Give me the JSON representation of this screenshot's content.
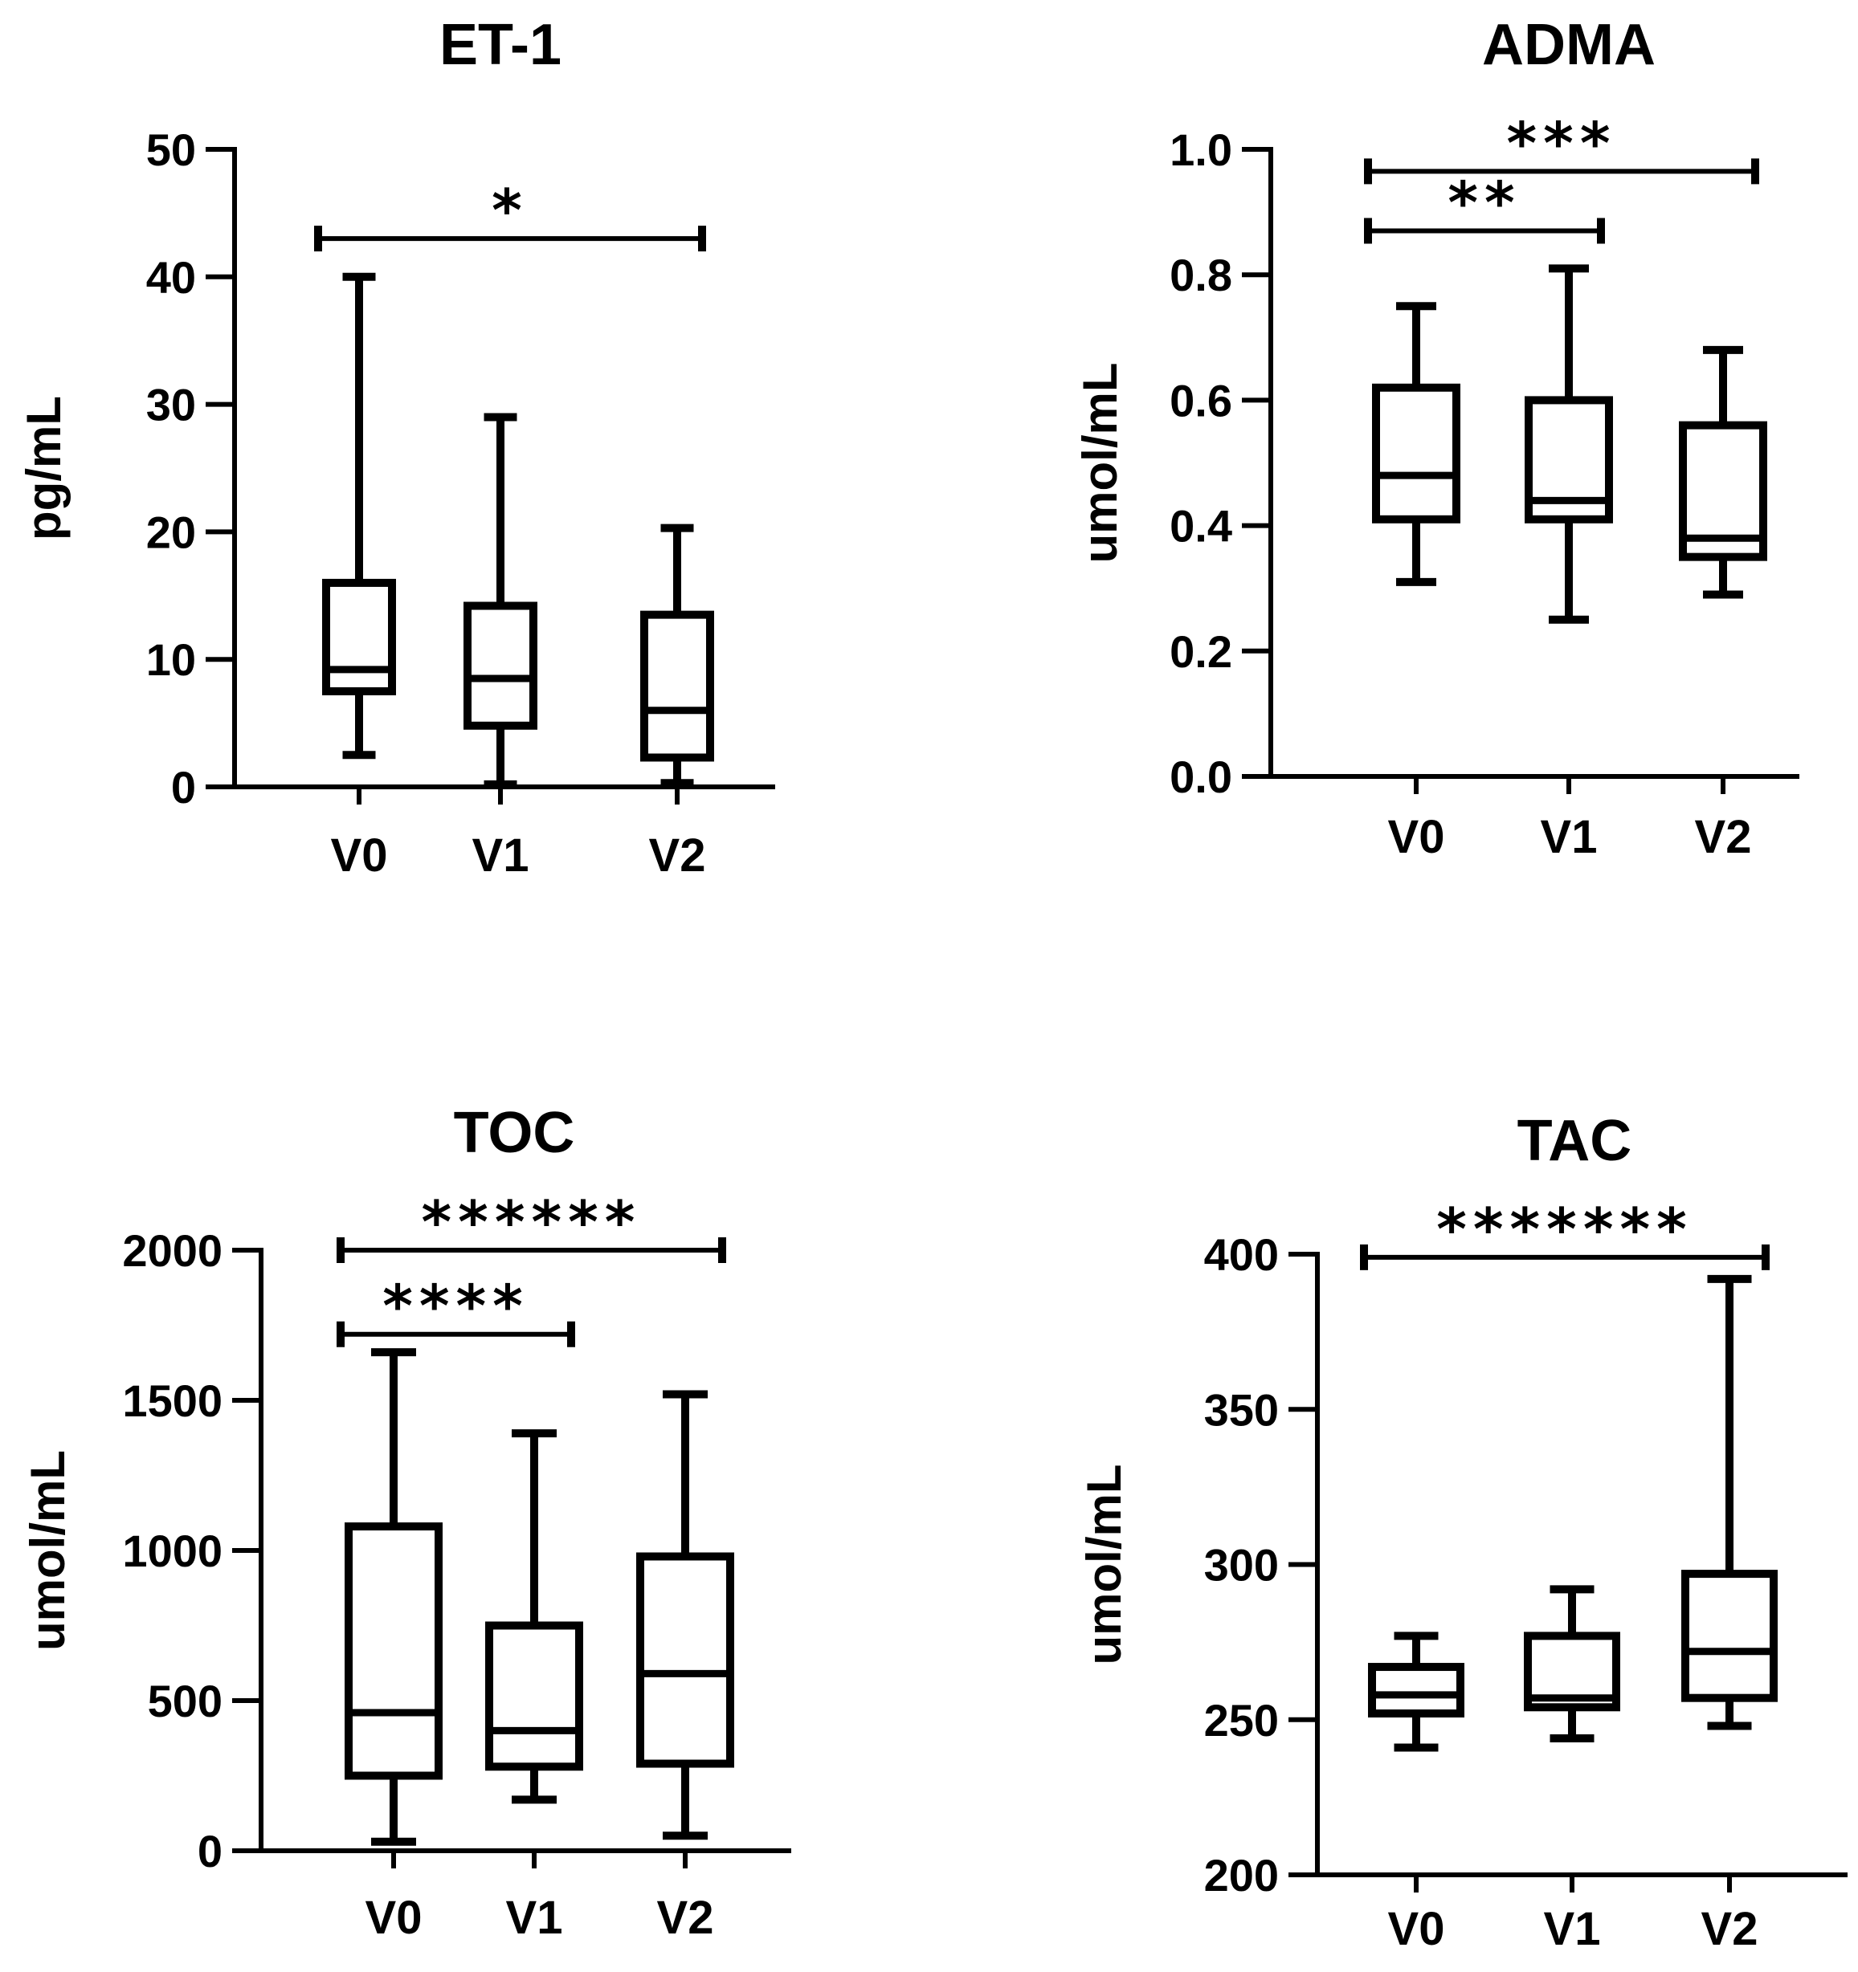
{
  "chart_data": [
    {
      "type": "boxplot",
      "title": "ET-1",
      "ylabel": "pg/mL",
      "ylim": [
        0,
        50
      ],
      "yticks": [
        0,
        10,
        20,
        30,
        40,
        50
      ],
      "categories": [
        "V0",
        "V1",
        "V2"
      ],
      "boxes": [
        {
          "min": 2.5,
          "q1": 7.5,
          "median": 9.2,
          "q3": 16,
          "max": 40,
          "color": "#9a9a9a"
        },
        {
          "min": 0.2,
          "q1": 4.8,
          "median": 8.5,
          "q3": 14.2,
          "max": 29,
          "color": "#858585"
        },
        {
          "min": 0.3,
          "q1": 2.3,
          "median": 6,
          "q3": 13.5,
          "max": 20.3,
          "color": "#9d9d9d"
        }
      ],
      "significance": [
        {
          "from": 0,
          "to": 2,
          "y": 43,
          "label": "*"
        }
      ]
    },
    {
      "type": "boxplot",
      "title": "ADMA",
      "ylabel": "umol/mL",
      "ylim": [
        0.0,
        1.0
      ],
      "yticks": [
        "0.0",
        "0.2",
        "0.4",
        "0.6",
        "0.8",
        "1.0"
      ],
      "categories": [
        "V0",
        "V1",
        "V2"
      ],
      "boxes": [
        {
          "min": 0.31,
          "q1": 0.41,
          "median": 0.48,
          "q3": 0.62,
          "max": 0.75,
          "color": "#8a8a8a"
        },
        {
          "min": 0.25,
          "q1": 0.41,
          "median": 0.44,
          "q3": 0.6,
          "max": 0.81,
          "color": "#858585"
        },
        {
          "min": 0.29,
          "q1": 0.35,
          "median": 0.38,
          "q3": 0.56,
          "max": 0.68,
          "color": "#636363"
        }
      ],
      "significance": [
        {
          "from": 0,
          "to": 2,
          "y": 0.965,
          "label": "***"
        },
        {
          "from": 0,
          "to": 1,
          "y": 0.87,
          "label": "**"
        }
      ]
    },
    {
      "type": "boxplot",
      "title": "TOC",
      "ylabel": "umol/mL",
      "ylim": [
        0,
        2000
      ],
      "yticks": [
        0,
        500,
        1000,
        1500,
        2000
      ],
      "categories": [
        "V0",
        "V1",
        "V2"
      ],
      "boxes": [
        {
          "min": 30,
          "q1": 250,
          "median": 460,
          "q3": 1080,
          "max": 1660,
          "color": "#8a8a8a"
        },
        {
          "min": 170,
          "q1": 280,
          "median": 400,
          "q3": 750,
          "max": 1390,
          "color": "#858585"
        },
        {
          "min": 50,
          "q1": 290,
          "median": 590,
          "q3": 980,
          "max": 1520,
          "color": "#606060"
        }
      ],
      "significance": [
        {
          "from": 0,
          "to": 2,
          "y": 2000,
          "label": "******"
        },
        {
          "from": 0,
          "to": 1,
          "y": 1720,
          "label": "****"
        }
      ]
    },
    {
      "type": "boxplot",
      "title": "TAC",
      "ylabel": "umol/mL",
      "ylim": [
        200,
        400
      ],
      "yticks": [
        200,
        250,
        300,
        350,
        400
      ],
      "categories": [
        "V0",
        "V1",
        "V2"
      ],
      "boxes": [
        {
          "min": 241,
          "q1": 252,
          "median": 258,
          "q3": 267,
          "max": 277,
          "color": "#8c8c8c"
        },
        {
          "min": 244,
          "q1": 254,
          "median": 257,
          "q3": 277,
          "max": 292,
          "color": "#8a8a8a"
        },
        {
          "min": 248,
          "q1": 257,
          "median": 272,
          "q3": 297,
          "max": 392,
          "color": "#636363"
        }
      ],
      "significance": [
        {
          "from": 0,
          "to": 2,
          "y": 399,
          "label": "*******"
        }
      ]
    }
  ]
}
